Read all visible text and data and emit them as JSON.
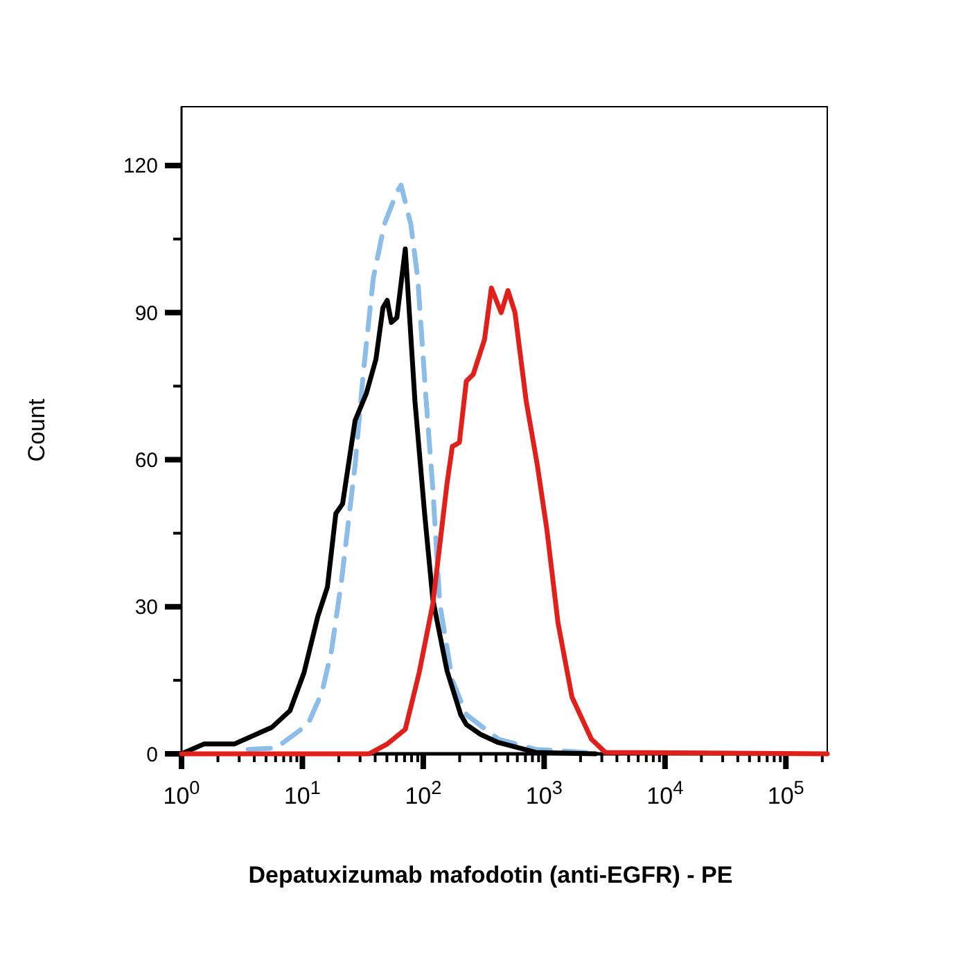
{
  "chart_data": {
    "type": "line",
    "xlabel": "Depatuxizumab mafodotin (anti-EGFR) - PE",
    "ylabel": "Count",
    "log": "x",
    "xlim": [
      1,
      220000
    ],
    "ylim": [
      0,
      132
    ],
    "xticks": [
      {
        "value": 1,
        "label": "10$^{0}$"
      },
      {
        "value": 2,
        "label": null
      },
      {
        "value": 3,
        "label": null
      },
      {
        "value": 4,
        "label": null
      },
      {
        "value": 5,
        "label": null
      },
      {
        "value": 6,
        "label": null
      },
      {
        "value": 7,
        "label": null
      },
      {
        "value": 8,
        "label": null
      },
      {
        "value": 9,
        "label": null
      },
      {
        "value": 10,
        "label": "10$^{1}$"
      },
      {
        "value": 20,
        "label": null
      },
      {
        "value": 30,
        "label": null
      },
      {
        "value": 40,
        "label": null
      },
      {
        "value": 50,
        "label": null
      },
      {
        "value": 60,
        "label": null
      },
      {
        "value": 70,
        "label": null
      },
      {
        "value": 80,
        "label": null
      },
      {
        "value": 90,
        "label": null
      },
      {
        "value": 100,
        "label": "10$^{2}$"
      },
      {
        "value": 200,
        "label": null
      },
      {
        "value": 300,
        "label": null
      },
      {
        "value": 400,
        "label": null
      },
      {
        "value": 500,
        "label": null
      },
      {
        "value": 600,
        "label": null
      },
      {
        "value": 700,
        "label": null
      },
      {
        "value": 800,
        "label": null
      },
      {
        "value": 900,
        "label": null
      },
      {
        "value": 1000,
        "label": "10$^{3}$"
      },
      {
        "value": 2000,
        "label": null
      },
      {
        "value": 3000,
        "label": null
      },
      {
        "value": 4000,
        "label": null
      },
      {
        "value": 5000,
        "label": null
      },
      {
        "value": 6000,
        "label": null
      },
      {
        "value": 7000,
        "label": null
      },
      {
        "value": 8000,
        "label": null
      },
      {
        "value": 9000,
        "label": null
      },
      {
        "value": 10000,
        "label": "10$^{4}$"
      },
      {
        "value": 20000,
        "label": null
      },
      {
        "value": 30000,
        "label": null
      },
      {
        "value": 40000,
        "label": null
      },
      {
        "value": 50000,
        "label": null
      },
      {
        "value": 60000,
        "label": null
      },
      {
        "value": 70000,
        "label": null
      },
      {
        "value": 80000,
        "label": null
      },
      {
        "value": 90000,
        "label": null
      },
      {
        "value": 100000,
        "label": "10$^{5}$"
      },
      {
        "value": 200000,
        "label": null
      }
    ],
    "yticks": [
      0,
      {
        "value": 15,
        "label": null
      },
      30,
      {
        "value": 45,
        "label": null
      },
      60,
      {
        "value": 75,
        "label": null
      },
      90,
      {
        "value": 105,
        "label": null
      },
      120
    ],
    "marker": "none",
    "series": [
      {
        "color": "#8bbde8",
        "line_style": "dashed",
        "x": [
          3.56,
          6.05,
          11.1,
          14.5,
          17.4,
          21,
          27.3,
          32,
          38.6,
          47.6,
          60.5,
          65.5,
          78.9,
          90,
          105,
          120,
          137,
          174,
          227,
          418,
          853,
          2210
        ],
        "values": [
          0.9,
          1.2,
          6,
          12.5,
          21,
          35,
          59,
          78,
          97,
          108,
          114.6,
          116,
          108,
          97,
          73,
          54,
          30.6,
          15,
          8,
          3,
          0.9,
          0.3
        ]
      },
      {
        "color": "#000000",
        "line_style": "solid",
        "x": [
          1,
          1.53,
          2.73,
          5.59,
          7.89,
          10.3,
          13.4,
          16.1,
          18.9,
          21.5,
          27.3,
          33.8,
          40.6,
          46.4,
          50.3,
          54.4,
          60.5,
          71,
          85.3,
          102.6,
          120,
          157,
          204,
          227,
          296,
          418,
          853,
          2660
        ],
        "values": [
          0,
          2,
          2,
          5.4,
          8.8,
          16.5,
          28,
          34,
          49,
          51,
          68,
          73.5,
          80.5,
          91,
          92.5,
          88,
          89,
          103,
          72,
          49,
          31.5,
          17,
          8,
          6,
          4,
          2.3,
          0.3,
          0
        ]
      },
      {
        "color": "#e0201b",
        "line_style": "solid",
        "x": [
          1,
          35.6,
          50.3,
          71,
          92.4,
          120,
          157,
          174,
          199,
          227,
          259,
          321,
          366,
          441,
          502,
          574,
          710,
          877,
          1054,
          1303,
          1698,
          2460,
          3206,
          220000
        ],
        "values": [
          0,
          0,
          2,
          5,
          16.5,
          30.6,
          55,
          62.7,
          63.5,
          76,
          77.4,
          84.5,
          95,
          90,
          94.5,
          90,
          72,
          59,
          45.7,
          26.7,
          11.6,
          3,
          0.3,
          0
        ]
      }
    ]
  }
}
